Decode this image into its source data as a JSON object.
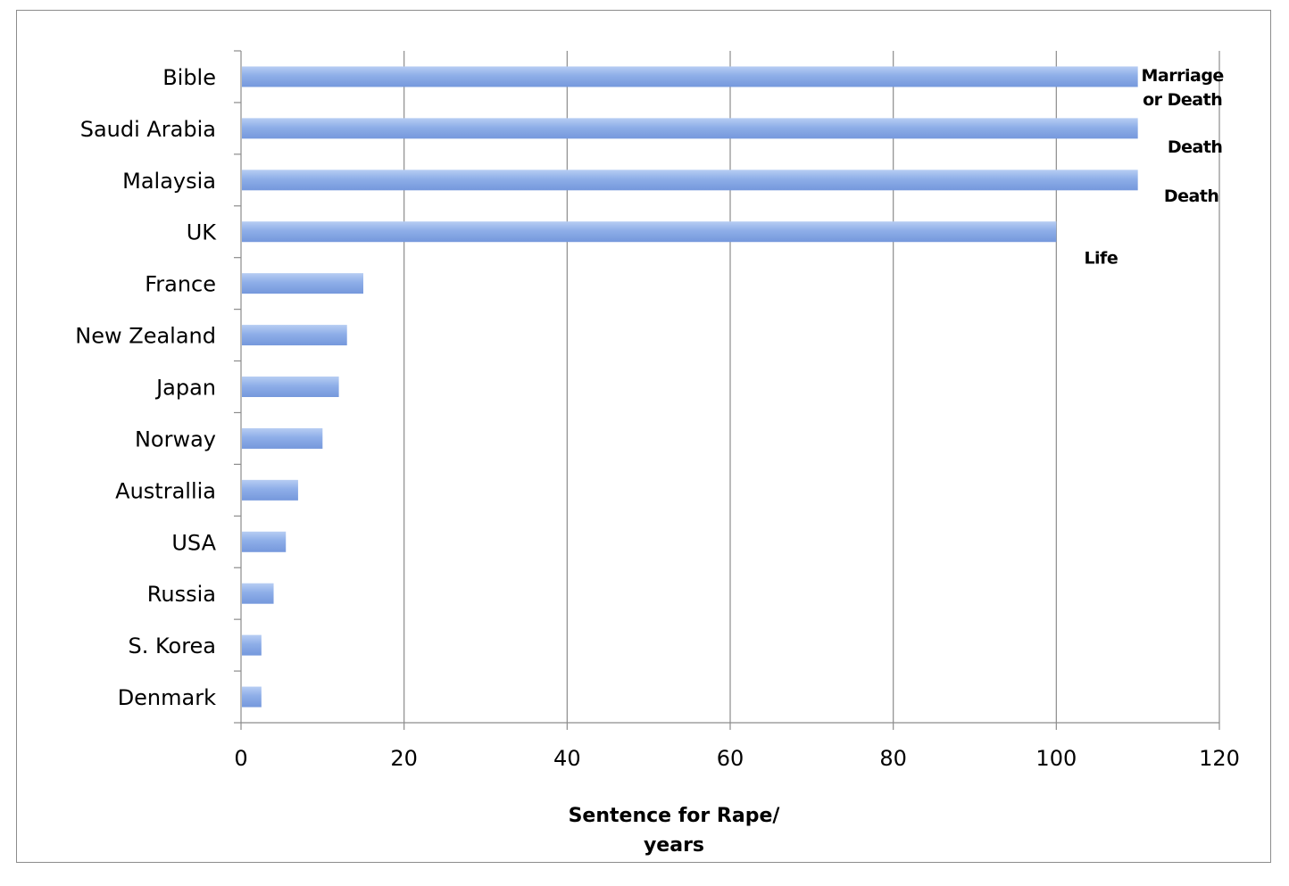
{
  "chart_data": {
    "type": "bar",
    "orientation": "horizontal",
    "categories": [
      "Bible",
      "Saudi Arabia",
      "Malaysia",
      "UK",
      "France",
      "New Zealand",
      "Japan",
      "Norway",
      "Australlia",
      "USA",
      "Russia",
      "S. Korea",
      "Denmark"
    ],
    "values": [
      110,
      110,
      110,
      100,
      15,
      13,
      12,
      10,
      7,
      5.5,
      4,
      2.5,
      2.5
    ],
    "annotations": [
      {
        "category": "Bible",
        "lines": [
          "Marriage",
          "or Death"
        ]
      },
      {
        "category": "Saudi Arabia",
        "lines": [
          "Death"
        ]
      },
      {
        "category": "Malaysia",
        "lines": [
          "Death"
        ]
      },
      {
        "category": "UK",
        "lines": [
          "Life"
        ]
      }
    ],
    "x_ticks": [
      0,
      20,
      40,
      60,
      80,
      100,
      120
    ],
    "xlim": [
      0,
      120
    ],
    "xlabel_lines": [
      "Sentence for Rape/",
      "years"
    ],
    "grid": "vertical major gridlines",
    "legend": "none",
    "bar_color": "#8eaee8"
  }
}
